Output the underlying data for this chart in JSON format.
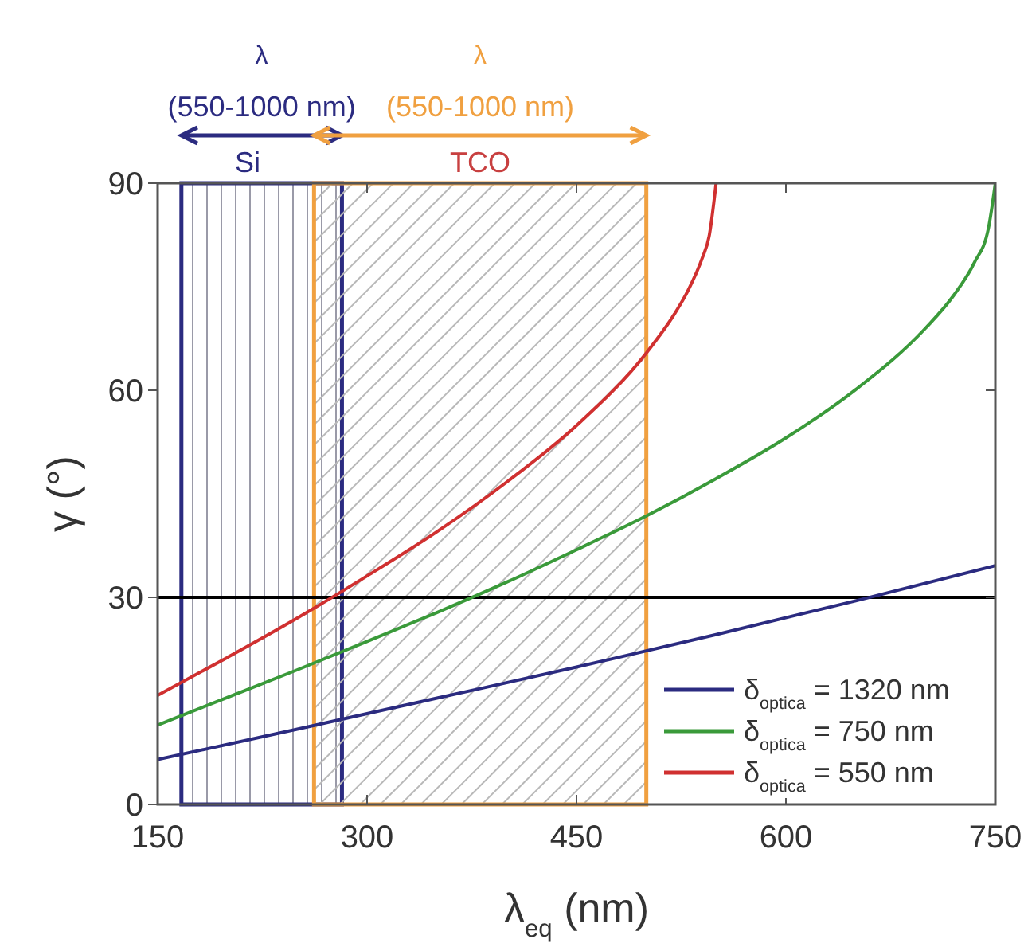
{
  "chart_data": {
    "type": "line",
    "xlabel": "λ$_{eq}$ (nm)",
    "ylabel": "γ (°)",
    "xlim": [
      150,
      750
    ],
    "xticks": [
      150,
      300,
      450,
      600,
      750
    ],
    "ylim": [
      0,
      90
    ],
    "yticks": [
      0,
      30,
      60,
      90
    ],
    "grid": false,
    "legend": "bottom right",
    "line_style": "solid",
    "marker": "none",
    "series": [
      {
        "name": "δ$_{optica}$ = 1320 nm",
        "color": "#2b2b80",
        "x": [
          150,
          250,
          350,
          450,
          550,
          650,
          750
        ],
        "values": [
          6.5,
          10.9,
          15.4,
          19.9,
          24.6,
          29.5,
          34.6
        ]
      },
      {
        "name": "δ$_{optica}$ = 750 nm",
        "color": "#3a9a3a",
        "x": [
          150,
          200,
          250,
          300,
          350,
          400,
          450,
          500,
          550,
          600,
          650,
          700,
          720,
          735,
          745,
          750
        ],
        "values": [
          11.5,
          15.5,
          19.5,
          23.6,
          27.8,
          32.2,
          36.9,
          41.8,
          47.2,
          53.1,
          60.1,
          69.0,
          73.7,
          78.5,
          83.4,
          90
        ]
      },
      {
        "name": "δ$_{optica}$ = 550 nm",
        "color": "#d03030",
        "x": [
          150,
          200,
          250,
          300,
          350,
          400,
          450,
          500,
          520,
          530,
          540,
          545,
          550
        ],
        "values": [
          15.8,
          21.3,
          27.0,
          33.1,
          39.5,
          46.7,
          54.9,
          65.4,
          71.0,
          74.5,
          79.1,
          82.3,
          90
        ]
      }
    ],
    "ref_lines": [
      {
        "axis": "y",
        "value": 30,
        "color": "#000000"
      }
    ],
    "bands": [
      {
        "axis": "x",
        "from": 167,
        "to": 282,
        "label": "Si",
        "color": "#2b2b80"
      },
      {
        "axis": "x",
        "from": 262,
        "to": 500,
        "label": "TCO",
        "color": "#f0a040"
      }
    ],
    "annotations": [
      "λ",
      "(550-1000 nm)",
      "λ",
      "(550-1000 nm)"
    ]
  }
}
